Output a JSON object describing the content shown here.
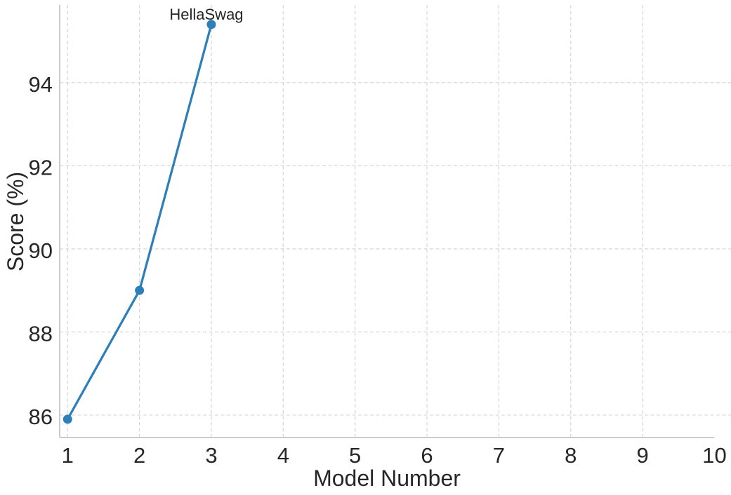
{
  "chart_data": {
    "type": "line",
    "title": "",
    "xlabel": "Model Number",
    "ylabel": "Score (%)",
    "series": [
      {
        "name": "HellaSwag",
        "x": [
          1,
          2,
          3
        ],
        "y": [
          85.9,
          89.0,
          95.4
        ]
      }
    ],
    "annotation": {
      "text": "HellaSwag",
      "x": 3,
      "y": 95.4
    },
    "xticks": [
      1,
      2,
      3,
      4,
      5,
      6,
      7,
      8,
      9,
      10
    ],
    "yticks": [
      86,
      88,
      90,
      92,
      94
    ],
    "xlim": [
      0.89,
      10.23
    ],
    "ylim": [
      85.46,
      95.87
    ],
    "grid": true,
    "grid_style": "dashed",
    "legend": false,
    "marker": "circle",
    "colors": {
      "line": "#2d7fb8",
      "marker": "#2d7fb8",
      "annotation": "#2d7fb8",
      "grid": "#d9d9d9",
      "spine": "#cccccc",
      "text": "#262626",
      "background": "#ffffff"
    }
  }
}
